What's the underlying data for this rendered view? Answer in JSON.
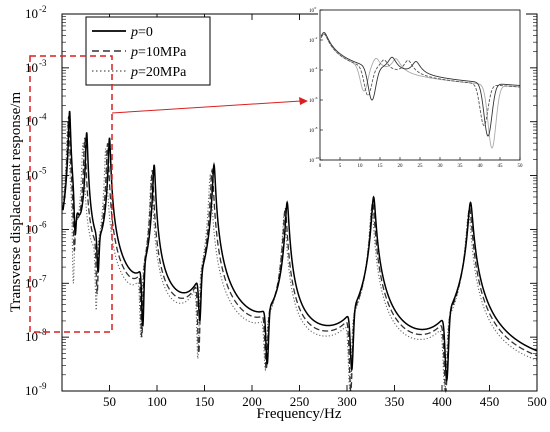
{
  "chart_data": {
    "type": "line",
    "title": "",
    "xlabel": "Frequency/Hz",
    "ylabel": "Transverse displacement response/m",
    "xlim": [
      0,
      500
    ],
    "ylim_exp": [
      -9,
      -2
    ],
    "y_scale": "log",
    "x_ticks": [
      "50",
      "100",
      "150",
      "200",
      "250",
      "300",
      "350",
      "400",
      "450",
      "500"
    ],
    "y_tick_labels": [
      {
        "base": "10",
        "exp": "-2"
      },
      {
        "base": "10",
        "exp": "-3"
      },
      {
        "base": "10",
        "exp": "-4"
      },
      {
        "base": "10",
        "exp": "-5"
      },
      {
        "base": "10",
        "exp": "-6"
      },
      {
        "base": "10",
        "exp": "-7"
      },
      {
        "base": "10",
        "exp": "-8"
      },
      {
        "base": "10",
        "exp": "-9"
      }
    ],
    "legend": {
      "position": "top-left",
      "entries": [
        {
          "var": "p",
          "text": "=0",
          "style": "solid",
          "color": "#000000"
        },
        {
          "var": "p",
          "text": "=10MPa",
          "style": "dashed",
          "color": "#333333"
        },
        {
          "var": "p",
          "text": "=20MPa",
          "style": "dotted",
          "color": "#555555"
        }
      ]
    },
    "series": [
      {
        "style": "solid",
        "resonance_hz": [
          8,
          26,
          50,
          97,
          160,
          237,
          328,
          430
        ],
        "antiresonance": [
          [
            14,
            -6.1
          ],
          [
            38,
            -6.8
          ],
          [
            85,
            -7.8
          ],
          [
            145,
            -7.7
          ],
          [
            216,
            -8.5
          ],
          [
            305,
            -8.6
          ],
          [
            405,
            -8.8
          ]
        ],
        "peak_log": [
          -3.8,
          -4.2,
          -4.3,
          -4.8,
          -4.8,
          -5.5,
          -5.4,
          -5.5
        ]
      },
      {
        "style": "dashed",
        "resonance_hz": [
          7,
          24,
          48,
          95,
          158,
          235,
          327,
          429
        ],
        "antiresonance": [
          [
            13,
            -6.4
          ],
          [
            37,
            -7.2
          ],
          [
            84,
            -8.0
          ],
          [
            144,
            -8.3
          ],
          [
            215,
            -8.6
          ],
          [
            304,
            -9.0
          ],
          [
            404,
            -9.0
          ]
        ],
        "peak_log": [
          -3.9,
          -4.3,
          -4.4,
          -4.9,
          -4.9,
          -5.6,
          -5.5,
          -5.6
        ]
      },
      {
        "style": "dotted",
        "resonance_hz": [
          6,
          22,
          46,
          94,
          156,
          234,
          326,
          428
        ],
        "antiresonance": [
          [
            12,
            -7.0
          ],
          [
            36,
            -7.5
          ],
          [
            83,
            -8.0
          ],
          [
            143,
            -8.4
          ],
          [
            214,
            -8.6
          ],
          [
            303,
            -9.0
          ],
          [
            403,
            -9.0
          ]
        ],
        "peak_log": [
          -4.0,
          -4.4,
          -4.5,
          -5.0,
          -5.0,
          -5.7,
          -5.6,
          -5.7
        ]
      }
    ],
    "inset": {
      "x_ticks": [
        "0",
        "5",
        "10",
        "15",
        "20",
        "25",
        "30",
        "35",
        "40",
        "45",
        "50"
      ],
      "y_tick_labels": [
        {
          "base": "10",
          "exp": "0"
        },
        {
          "base": "10",
          "exp": "-2"
        },
        {
          "base": "10",
          "exp": "-4"
        },
        {
          "base": "10",
          "exp": "-6"
        },
        {
          "base": "10",
          "exp": "-8"
        },
        {
          "base": "10",
          "exp": "-10"
        }
      ],
      "xlim": [
        0,
        50
      ],
      "ylim_exp": [
        -10,
        0
      ],
      "series": [
        {
          "style": "solid",
          "color": "#333333",
          "resonance_hz": [
            1,
            18,
            24
          ],
          "antiresonance": [
            [
              13,
              -6.0
            ],
            [
              42,
              -8.4
            ]
          ],
          "peak_log": [
            -1.5,
            -3.2,
            -3.5
          ]
        },
        {
          "style": "dashed",
          "color": "#555555",
          "resonance_hz": [
            1,
            16,
            22
          ],
          "antiresonance": [
            [
              12,
              -5.7
            ],
            [
              41,
              -7.7
            ]
          ],
          "peak_log": [
            -1.6,
            -3.4,
            -3.4
          ]
        },
        {
          "style": "solid",
          "color": "#aaaaaa",
          "resonance_hz": [
            1,
            14,
            19
          ],
          "antiresonance": [
            [
              11,
              -5.4
            ],
            [
              43,
              -9.2
            ]
          ],
          "peak_log": [
            -1.6,
            -3.3,
            -3.3
          ]
        }
      ]
    },
    "annotation": {
      "box_color": "#d92020",
      "arrow_color": "#d92020"
    }
  }
}
